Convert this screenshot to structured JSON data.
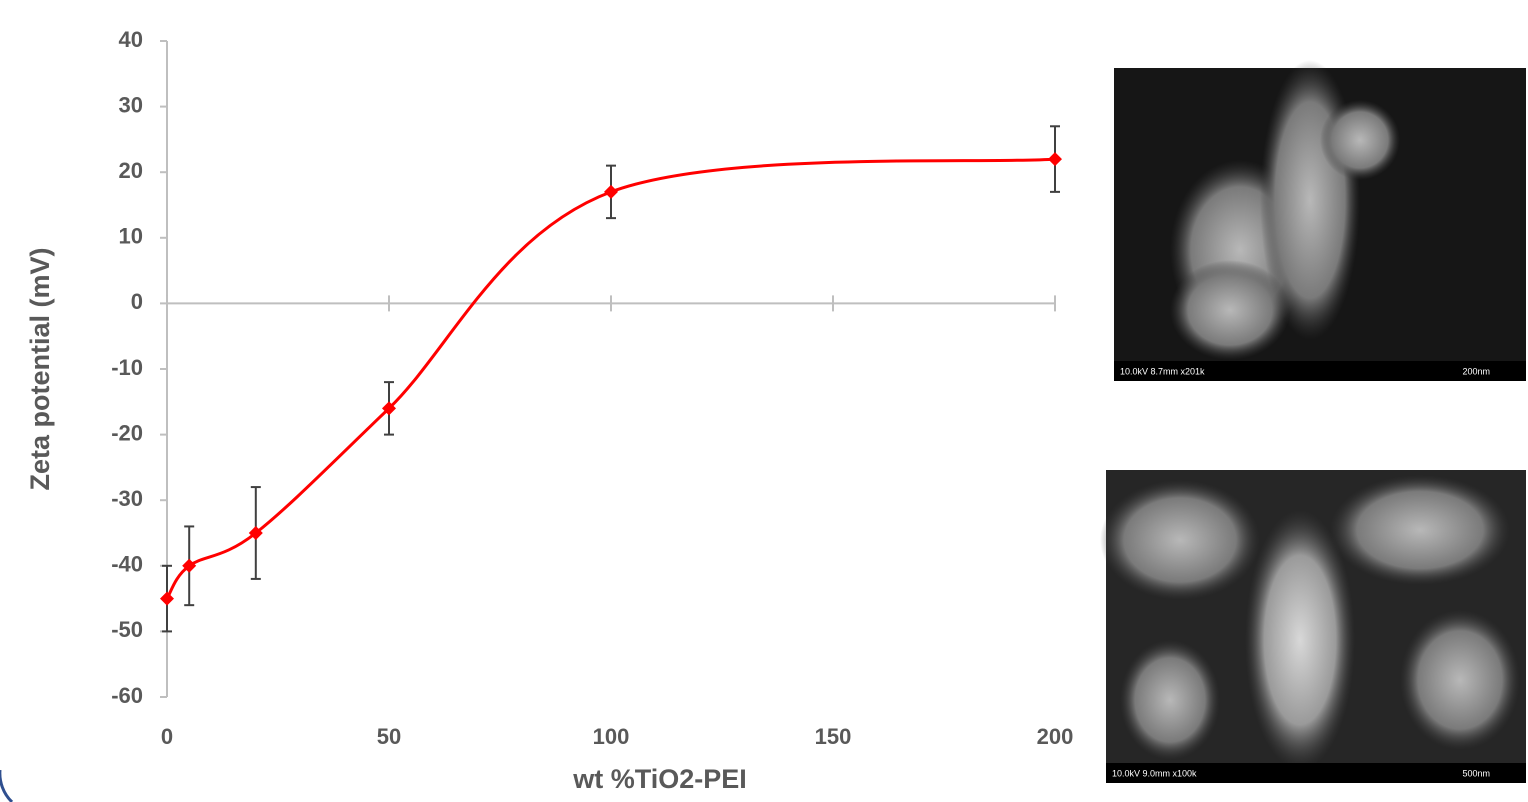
{
  "chart_data": {
    "type": "line",
    "x_label": "wt %TiO2-PEI",
    "y_label": "Zeta potential (mV)",
    "x": [
      0,
      5,
      20,
      50,
      100,
      200
    ],
    "values": [
      -45,
      -40,
      -35,
      -16,
      17,
      22
    ],
    "errors": [
      5,
      6,
      7,
      4,
      4,
      5
    ],
    "color": "#ff0000",
    "smooth": true,
    "xlim": [
      0,
      200
    ],
    "xticks": [
      0,
      50,
      100,
      150,
      200
    ],
    "ylim": [
      -60,
      40
    ],
    "yticks": [
      -60,
      -50,
      -40,
      -30,
      -20,
      -10,
      0,
      10,
      20,
      30,
      40
    ],
    "grid": false
  },
  "sem_images": [
    {
      "caption": "10.0kV 8.7mm x201k",
      "scale": "200nm"
    },
    {
      "caption": "10.0kV 9.0mm x100k",
      "scale": "500nm"
    }
  ]
}
